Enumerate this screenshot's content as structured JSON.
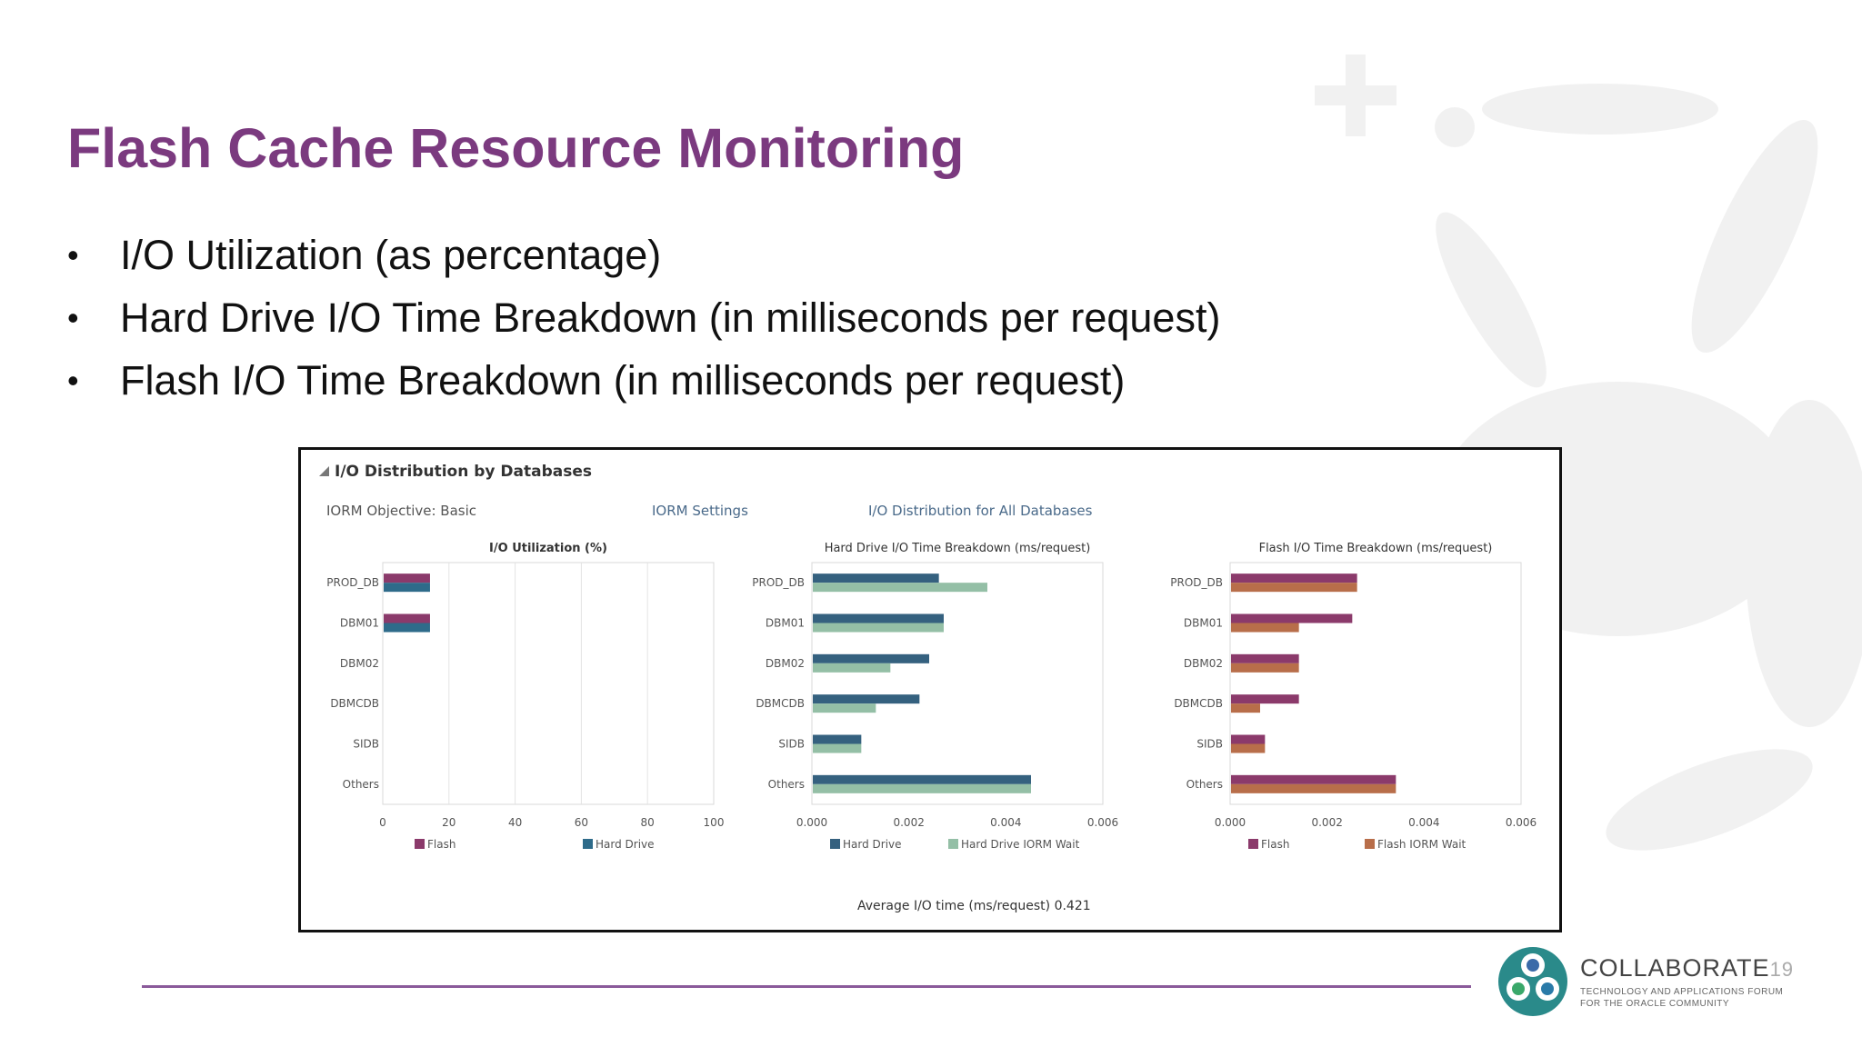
{
  "slide": {
    "title": "Flash Cache Resource Monitoring",
    "bullets": [
      "I/O Utilization (as percentage)",
      "Hard Drive I/O Time Breakdown (in milliseconds per request)",
      "Flash I/O  Time Breakdown (in milliseconds per request)"
    ],
    "bullet_glyph": "•"
  },
  "panel": {
    "title": "I/O Distribution by Databases",
    "iorm_objective": "IORM Objective:  Basic",
    "iorm_settings_link": "IORM Settings",
    "io_distribution_link": "I/O Distribution for All Databases",
    "average_text": "Average I/O time (ms/request)  0.421"
  },
  "chart_data": [
    {
      "type": "bar",
      "orientation": "horizontal",
      "title": "I/O Utilization (%)",
      "categories": [
        "PROD_DB",
        "DBM01",
        "DBM02",
        "DBMCDB",
        "SIDB",
        "Others"
      ],
      "series": [
        {
          "name": "Flash",
          "color": "#8b3a6b",
          "values": [
            14,
            14,
            0,
            0,
            0,
            0
          ]
        },
        {
          "name": "Hard Drive",
          "color": "#2e6b8a",
          "values": [
            14,
            14,
            0,
            0,
            0,
            0
          ]
        }
      ],
      "xlim": [
        0,
        100
      ],
      "xticks": [
        "0",
        "20",
        "40",
        "60",
        "80",
        "100"
      ],
      "grid": true,
      "legend": "bottom"
    },
    {
      "type": "bar",
      "orientation": "horizontal",
      "title": "Hard Drive I/O  Time Breakdown (ms/request)",
      "categories": [
        "PROD_DB",
        "DBM01",
        "DBM02",
        "DBMCDB",
        "SIDB",
        "Others"
      ],
      "series": [
        {
          "name": "Hard Drive",
          "color": "#35617f",
          "values": [
            0.0026,
            0.0027,
            0.0024,
            0.0022,
            0.001,
            0.0045
          ]
        },
        {
          "name": "Hard Drive IORM Wait",
          "color": "#94bfa6",
          "values": [
            0.0036,
            0.0027,
            0.0016,
            0.0013,
            0.001,
            0.0045
          ]
        }
      ],
      "xlim": [
        0,
        0.006
      ],
      "xticks": [
        "0.000",
        "0.002",
        "0.004",
        "0.006"
      ],
      "grid": false,
      "legend": "bottom"
    },
    {
      "type": "bar",
      "orientation": "horizontal",
      "title": "Flash I/O Time Breakdown (ms/request)",
      "categories": [
        "PROD_DB",
        "DBM01",
        "DBM02",
        "DBMCDB",
        "SIDB",
        "Others"
      ],
      "series": [
        {
          "name": "Flash",
          "color": "#8b3a6b",
          "values": [
            0.0026,
            0.0025,
            0.0014,
            0.0014,
            0.0007,
            0.0034
          ]
        },
        {
          "name": "Flash IORM Wait",
          "color": "#b86e4a",
          "values": [
            0.0026,
            0.0014,
            0.0014,
            0.0006,
            0.0007,
            0.0034
          ]
        }
      ],
      "xlim": [
        0,
        0.006
      ],
      "xticks": [
        "0.000",
        "0.002",
        "0.004",
        "0.006"
      ],
      "grid": false,
      "legend": "bottom"
    }
  ],
  "footer": {
    "brand_name": "COLLABORATE",
    "brand_num": "19",
    "brand_sub_1": "TECHNOLOGY AND APPLICATIONS FORUM",
    "brand_sub_2": "FOR THE ORACLE COMMUNITY",
    "accent_color": "#7b3a7f"
  }
}
